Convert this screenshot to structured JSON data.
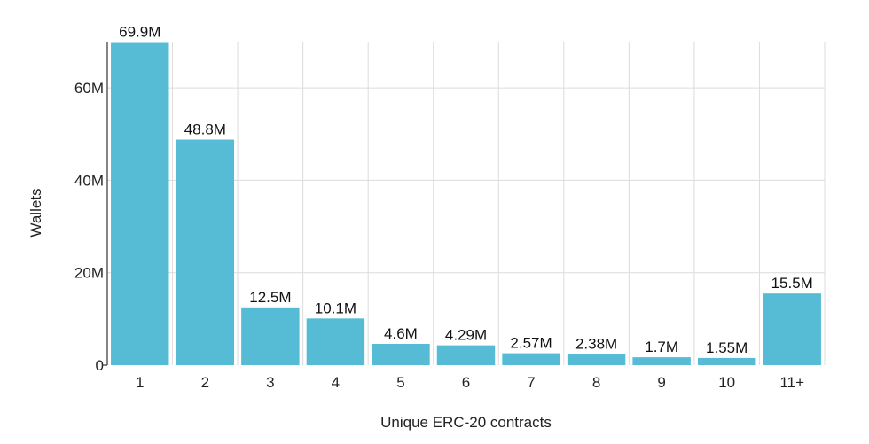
{
  "chart_data": {
    "type": "bar",
    "categories": [
      "1",
      "2",
      "3",
      "4",
      "5",
      "6",
      "7",
      "8",
      "9",
      "10",
      "11+"
    ],
    "values": [
      69.9,
      48.8,
      12.5,
      10.1,
      4.6,
      4.29,
      2.57,
      2.38,
      1.7,
      1.55,
      15.5
    ],
    "data_labels": [
      "69.9M",
      "48.8M",
      "12.5M",
      "10.1M",
      "4.6M",
      "4.29M",
      "2.57M",
      "2.38M",
      "1.7M",
      "1.55M",
      "15.5M"
    ],
    "xlabel": "Unique ERC-20 contracts",
    "ylabel": "Wallets",
    "ylim": [
      0,
      70
    ],
    "yticks": [
      0,
      20,
      40,
      60
    ],
    "ytick_labels": [
      "0",
      "20M",
      "40M",
      "60M"
    ],
    "grid": true,
    "bar_color": "#56bcd6"
  }
}
